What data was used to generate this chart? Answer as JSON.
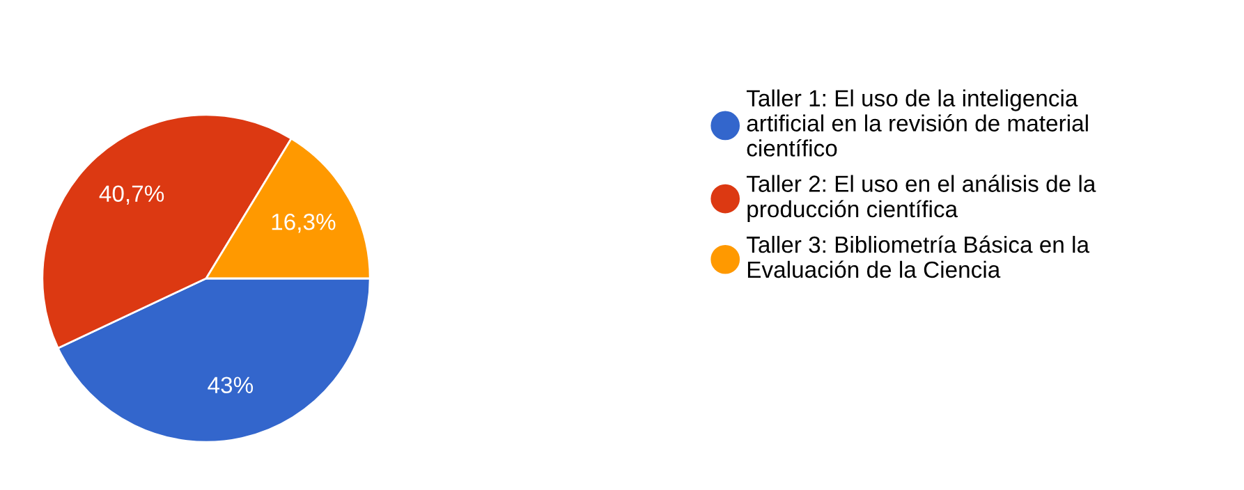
{
  "chart_data": {
    "type": "pie",
    "categories": [
      "Taller 1: El uso de la inteligencia artificial en la revisión de material científico",
      "Taller 2: El uso en el análisis de la producción científica",
      "Taller 3: Bibliometría Básica en la Evaluación de la Ciencia"
    ],
    "values": [
      43,
      40.7,
      16.3
    ],
    "value_labels": [
      "43%",
      "40,7%",
      "16,3%"
    ],
    "colors": [
      "#3366cc",
      "#dc3912",
      "#ff9900"
    ],
    "legend": "right"
  }
}
